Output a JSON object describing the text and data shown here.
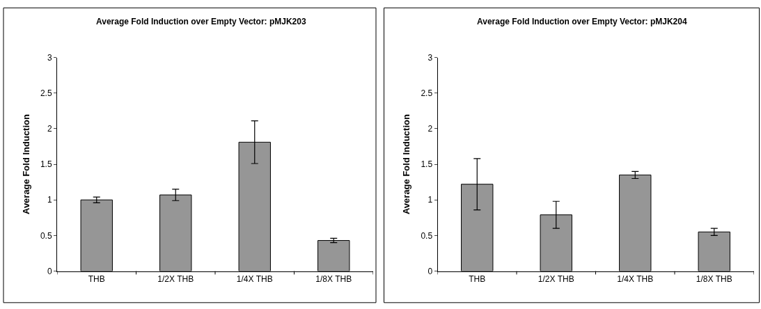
{
  "chart_data": [
    {
      "type": "bar",
      "title": "Average Fold Induction over Empty Vector: pMJK203",
      "ylabel": "Average Fold Induction",
      "categories": [
        "THB",
        "1/2X THB",
        "1/4X THB",
        "1/8X THB"
      ],
      "values": [
        1.0,
        1.07,
        1.81,
        0.43
      ],
      "errors": [
        0.04,
        0.08,
        0.3,
        0.03
      ],
      "color": "#969696",
      "ylim": [
        0,
        3
      ],
      "yticks": [
        0,
        0.5,
        1,
        1.5,
        2,
        2.5,
        3
      ]
    },
    {
      "type": "bar",
      "title": "Average Fold Induction over Empty Vector: pMJK204",
      "ylabel": "Average Fold Induction",
      "categories": [
        "THB",
        "1/2X THB",
        "1/4X THB",
        "1/8X THB"
      ],
      "values": [
        1.22,
        0.79,
        1.35,
        0.55
      ],
      "errors": [
        0.36,
        0.19,
        0.05,
        0.05
      ],
      "color": "#969696",
      "ylim": [
        0,
        3
      ],
      "yticks": [
        0,
        0.5,
        1,
        1.5,
        2,
        2.5,
        3
      ]
    }
  ]
}
